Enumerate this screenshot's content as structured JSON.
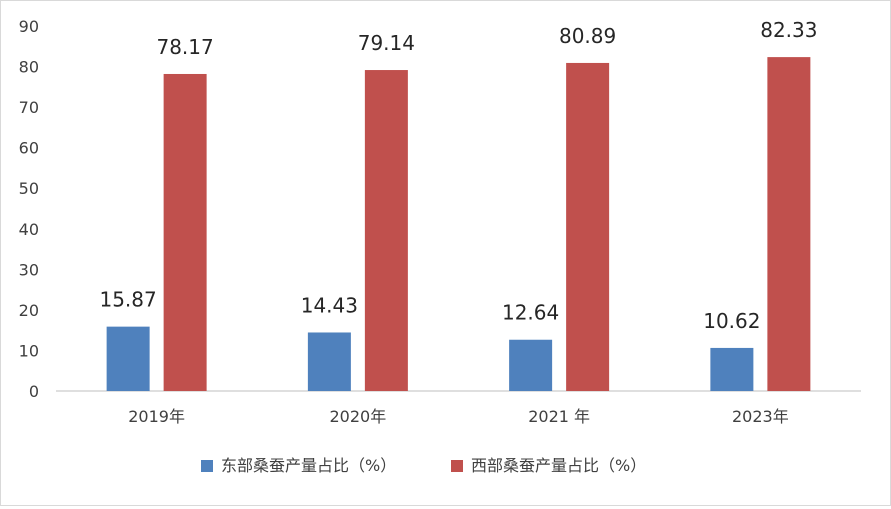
{
  "chart_data": {
    "type": "bar",
    "categories": [
      "2019年",
      "2020年",
      "2021 年",
      "2023年"
    ],
    "series": [
      {
        "name": "东部桑蚕产量占比（%）",
        "values": [
          15.87,
          14.43,
          12.64,
          10.62
        ],
        "color": "#4f81bd"
      },
      {
        "name": "西部桑蚕产量占比（%）",
        "values": [
          78.17,
          79.14,
          80.89,
          82.33
        ],
        "color": "#c0504d"
      }
    ],
    "ylim": [
      0,
      90
    ],
    "yticks": [
      0,
      10,
      20,
      30,
      40,
      50,
      60,
      70,
      80,
      90
    ],
    "grid": false,
    "legend": "bottom"
  }
}
